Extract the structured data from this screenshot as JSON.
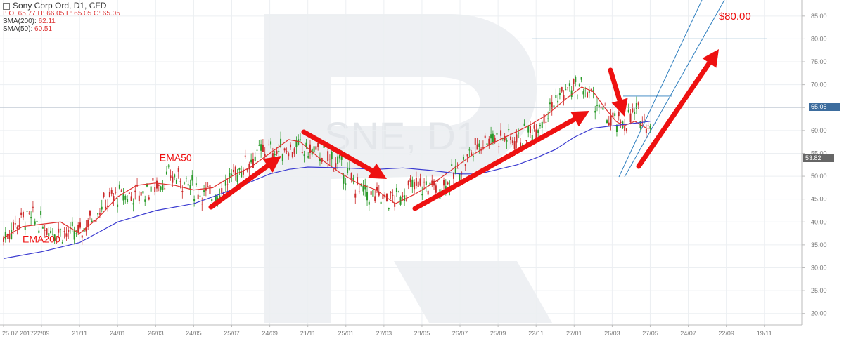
{
  "legend": {
    "title": "Sony Corp Ord,  D1,  CFD",
    "ohlc": "I: O: 65.77  H: 66.05  L: 65.05  C: 65.05",
    "sma200_label": "SMA(200): ",
    "sma200_value": "62.11",
    "sma50_label": "SMA(50): ",
    "sma50_value": "60.51"
  },
  "watermark": "SNE, D1",
  "price_tags": {
    "last": "65.05",
    "cross": "53.82"
  },
  "colors": {
    "ema50": "#e0302e",
    "ema200": "#3a3ad0",
    "arrow": "#ee1111",
    "channel": "#2f7fbf",
    "target_line": "#2f6f9f",
    "last_tag": "#3d6d9e",
    "cross_tag": "#666666",
    "up_candle": "#2a9a2a",
    "down_candle": "#cc2a2a"
  },
  "chart_data": {
    "type": "line",
    "title": "Sony Corp Ord,  D1,  CFD",
    "x_tick_labels": [
      "25.07.2017",
      "22/09",
      "21/11",
      "24/01",
      "26/03",
      "24/05",
      "25/07",
      "24/09",
      "21/11",
      "25/01",
      "27/03",
      "28/05",
      "26/07",
      "25/09",
      "22/11",
      "27/01",
      "26/03",
      "27/05",
      "24/07",
      "22/09",
      "19/11"
    ],
    "y_tick_labels": [
      "20.00",
      "25.00",
      "30.00",
      "35.00",
      "40.00",
      "45.00",
      "50.00",
      "55.00",
      "60.00",
      "65.00",
      "70.00",
      "75.00",
      "80.00",
      "85.00"
    ],
    "ylim": [
      17.5,
      88.5
    ],
    "x_domain": [
      0,
      20.8
    ],
    "series": [
      {
        "name": "EMA50",
        "x": [
          0,
          0.5,
          1,
          1.5,
          2,
          2.5,
          3,
          3.5,
          4,
          4.5,
          5,
          5.5,
          6,
          6.5,
          7,
          7.5,
          7.8,
          8.3,
          8.8,
          9.3,
          9.8,
          10.3,
          10.8,
          11.3,
          11.8,
          12.3,
          12.8,
          13.3,
          13.8,
          14.3,
          14.8,
          15.2,
          15.5,
          15.8,
          16.1,
          16.3,
          16.6,
          16.9,
          17.0
        ],
        "values": [
          36.5,
          39.0,
          39.5,
          40.0,
          37.5,
          41.0,
          45.5,
          48.0,
          48.5,
          48.0,
          47.0,
          47.5,
          50.0,
          52.0,
          55.0,
          58.0,
          57.5,
          54.0,
          51.0,
          48.5,
          47.0,
          44.0,
          46.0,
          48.5,
          51.5,
          54.5,
          57.0,
          59.0,
          61.0,
          63.5,
          67.0,
          69.5,
          68.5,
          65.0,
          62.0,
          61.0,
          62.0,
          60.5,
          60.5
        ]
      },
      {
        "name": "EMA200",
        "x": [
          0,
          1,
          2,
          3,
          4,
          5,
          6,
          7,
          7.5,
          8,
          9,
          9.8,
          10.5,
          11.2,
          12,
          12.5,
          13,
          13.5,
          14,
          14.5,
          15,
          15.5,
          16,
          16.5,
          17.0
        ],
        "values": [
          32.0,
          33.5,
          35.5,
          40.0,
          42.5,
          44.0,
          47.0,
          50.5,
          51.5,
          52.0,
          51.8,
          51.5,
          51.8,
          51.3,
          50.5,
          50.5,
          51.5,
          52.5,
          54.0,
          55.8,
          58.5,
          60.5,
          61.0,
          61.5,
          62.0
        ]
      }
    ],
    "candles_note": "daily candlesticks (approximate)",
    "annotations": [
      {
        "text": "EMA50",
        "x": 4.1,
        "y": 53.3
      },
      {
        "text": "EMA200",
        "x": 0.5,
        "y": 35.5
      },
      {
        "text": "$80.00",
        "x": 18.8,
        "y": 84.2
      }
    ],
    "target_level": 80.0,
    "last_price": 65.05,
    "grid": true,
    "legend_position": "top-left"
  }
}
